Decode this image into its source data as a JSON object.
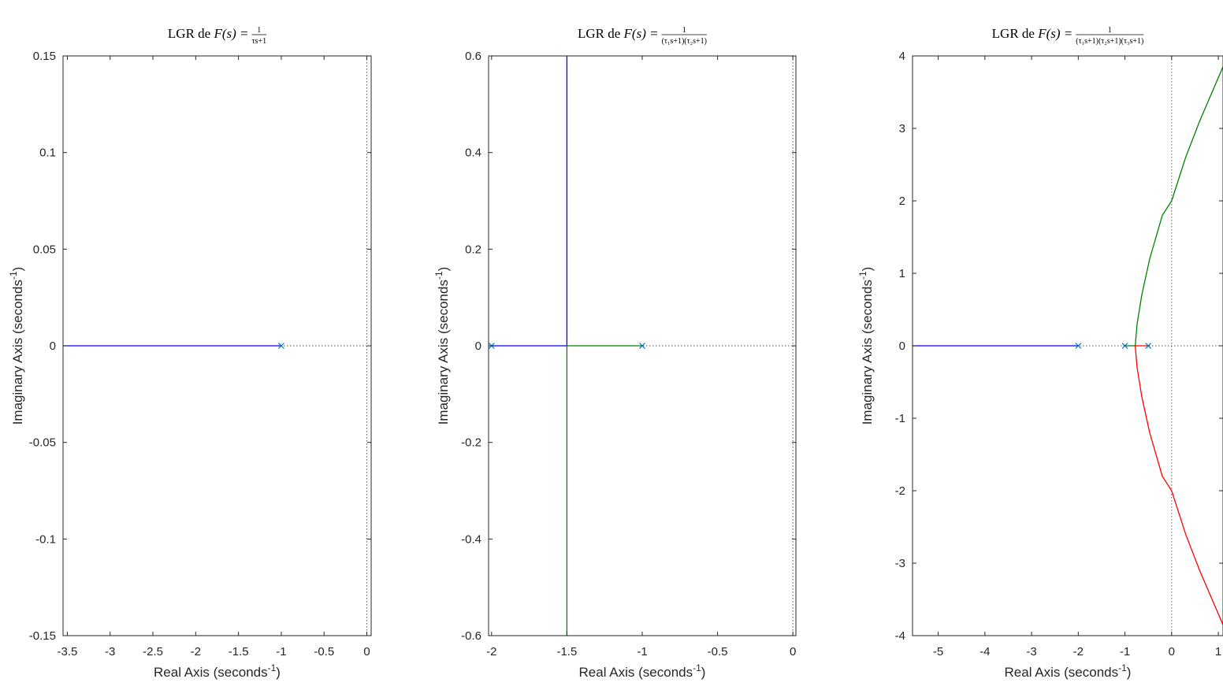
{
  "figure": {
    "background": "#ffffff",
    "axis_color": "#262626"
  },
  "chart_data": [
    {
      "type": "line",
      "title": {
        "prefix": "LGR de ",
        "func": "F(s) = ",
        "numerator": "1",
        "denominator": "τs+1"
      },
      "xlabel": "Real Axis (seconds",
      "ylabel": "Imaginary Axis (seconds",
      "label_exponent": "-1",
      "xlim": [
        -3.55,
        0.05
      ],
      "ylim": [
        -0.15,
        0.15
      ],
      "xticks": [
        -3.5,
        -3,
        -2.5,
        -2,
        -1.5,
        -1,
        -0.5,
        0
      ],
      "xtick_labels": [
        "-3.5",
        "-3",
        "-2.5",
        "-2",
        "-1.5",
        "-1",
        "-0.5",
        "0"
      ],
      "yticks": [
        -0.15,
        -0.1,
        -0.05,
        0,
        0.05,
        0.1,
        0.15
      ],
      "ytick_labels": [
        "-0.15",
        "-0.1",
        "-0.05",
        "0",
        "0.05",
        "0.1",
        "0.15"
      ],
      "series": [
        {
          "color": "#0000ff",
          "points": [
            [
              -1,
              0
            ],
            [
              -3.55,
              0
            ]
          ]
        }
      ],
      "poles": [
        [
          -1,
          0
        ]
      ],
      "pole_color": "#0072bd",
      "guide_lines": {
        "vertical_at_x": 0,
        "horizontal_at_y": 0,
        "style": "dotted"
      }
    },
    {
      "type": "line",
      "title": {
        "prefix": "LGR de ",
        "func": "F(s) = ",
        "numerator": "1",
        "denominator": "(τ₁s+1)(τ₂s+1)"
      },
      "xlabel": "Real Axis (seconds",
      "ylabel": "Imaginary Axis (seconds",
      "label_exponent": "-1",
      "xlim": [
        -2.02,
        0.02
      ],
      "ylim": [
        -0.6,
        0.6
      ],
      "xticks": [
        -2,
        -1.5,
        -1,
        -0.5,
        0
      ],
      "xtick_labels": [
        "-2",
        "-1.5",
        "-1",
        "-0.5",
        "0"
      ],
      "yticks": [
        -0.6,
        -0.4,
        -0.2,
        0,
        0.2,
        0.4,
        0.6
      ],
      "ytick_labels": [
        "-0.6",
        "-0.4",
        "-0.2",
        "0",
        "0.2",
        "0.4",
        "0.6"
      ],
      "series": [
        {
          "color": "#0000ff",
          "points": [
            [
              -2,
              0
            ],
            [
              -1.5,
              0
            ],
            [
              -1.5,
              0.6
            ]
          ]
        },
        {
          "color": "#008000",
          "points": [
            [
              -1,
              0
            ],
            [
              -1.5,
              0
            ],
            [
              -1.5,
              -0.6
            ]
          ]
        }
      ],
      "poles": [
        [
          -2,
          0
        ],
        [
          -1,
          0
        ]
      ],
      "pole_color": "#0072bd",
      "guide_lines": {
        "vertical_at_x": 0,
        "horizontal_at_y": 0,
        "style": "dotted"
      }
    },
    {
      "type": "line",
      "title": {
        "prefix": "LGR de ",
        "func": "F(s) = ",
        "numerator": "1",
        "denominator": "(τ₁s+1)(τ₂s+1)(τ₃s+1)"
      },
      "xlabel": "Real Axis (seconds",
      "ylabel": "Imaginary Axis (seconds",
      "label_exponent": "-1",
      "xlim": [
        -5.55,
        1.1
      ],
      "ylim": [
        -4,
        4
      ],
      "xticks": [
        -5,
        -4,
        -3,
        -2,
        -1,
        0,
        1
      ],
      "xtick_labels": [
        "-5",
        "-4",
        "-3",
        "-2",
        "-1",
        "0",
        "1"
      ],
      "yticks": [
        -4,
        -3,
        -2,
        -1,
        0,
        1,
        2,
        3,
        4
      ],
      "ytick_labels": [
        "-4",
        "-3",
        "-2",
        "-1",
        "0",
        "1",
        "2",
        "3",
        "4"
      ],
      "series": [
        {
          "color": "#0000ff",
          "points": [
            [
              -2,
              0
            ],
            [
              -5.55,
              0
            ]
          ]
        },
        {
          "color": "#008000",
          "points": [
            [
              -1,
              0
            ],
            [
              -0.78,
              0
            ],
            [
              -0.74,
              0.3
            ],
            [
              -0.64,
              0.7
            ],
            [
              -0.47,
              1.2
            ],
            [
              -0.2,
              1.8
            ],
            [
              0,
              2.0
            ],
            [
              0.3,
              2.6
            ],
            [
              0.6,
              3.1
            ],
            [
              0.9,
              3.55
            ],
            [
              1.1,
              3.85
            ]
          ]
        },
        {
          "color": "#ff0000",
          "points": [
            [
              -0.5,
              0
            ],
            [
              -0.78,
              0
            ],
            [
              -0.74,
              -0.3
            ],
            [
              -0.64,
              -0.7
            ],
            [
              -0.47,
              -1.2
            ],
            [
              -0.2,
              -1.8
            ],
            [
              0,
              -2.0
            ],
            [
              0.3,
              -2.6
            ],
            [
              0.6,
              -3.1
            ],
            [
              0.9,
              -3.55
            ],
            [
              1.1,
              -3.85
            ]
          ]
        }
      ],
      "poles": [
        [
          -2,
          0
        ],
        [
          -1,
          0
        ],
        [
          -0.5,
          0
        ]
      ],
      "pole_color": "#0072bd",
      "guide_lines": {
        "vertical_at_x": 0,
        "horizontal_at_y": 0,
        "style": "dotted"
      }
    }
  ]
}
